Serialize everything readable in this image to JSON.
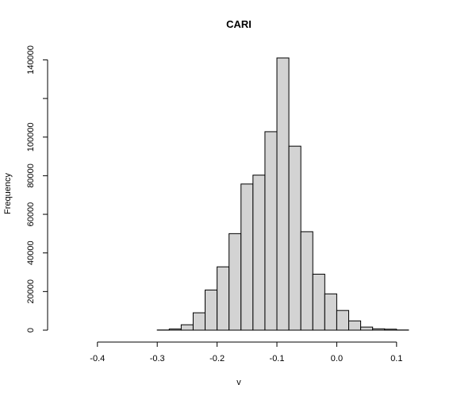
{
  "chart_data": {
    "type": "bar",
    "title": "CARI",
    "xlabel": "v",
    "ylabel": "Frequency",
    "bin_width": 0.02,
    "bins": [
      {
        "x0": -0.46,
        "x1": -0.44,
        "count": 0
      },
      {
        "x0": -0.44,
        "x1": -0.42,
        "count": 0
      },
      {
        "x0": -0.42,
        "x1": -0.4,
        "count": 0
      },
      {
        "x0": -0.4,
        "x1": -0.38,
        "count": 0
      },
      {
        "x0": -0.38,
        "x1": -0.36,
        "count": 0
      },
      {
        "x0": -0.36,
        "x1": -0.34,
        "count": 0
      },
      {
        "x0": -0.34,
        "x1": -0.32,
        "count": 0
      },
      {
        "x0": -0.32,
        "x1": -0.3,
        "count": 0
      },
      {
        "x0": -0.3,
        "x1": -0.28,
        "count": 100
      },
      {
        "x0": -0.28,
        "x1": -0.26,
        "count": 600
      },
      {
        "x0": -0.26,
        "x1": -0.24,
        "count": 2800
      },
      {
        "x0": -0.24,
        "x1": -0.22,
        "count": 9000
      },
      {
        "x0": -0.22,
        "x1": -0.2,
        "count": 20800
      },
      {
        "x0": -0.2,
        "x1": -0.18,
        "count": 32800
      },
      {
        "x0": -0.18,
        "x1": -0.16,
        "count": 50000
      },
      {
        "x0": -0.16,
        "x1": -0.14,
        "count": 75700
      },
      {
        "x0": -0.14,
        "x1": -0.12,
        "count": 80300
      },
      {
        "x0": -0.12,
        "x1": -0.1,
        "count": 102800
      },
      {
        "x0": -0.1,
        "x1": -0.08,
        "count": 141000
      },
      {
        "x0": -0.08,
        "x1": -0.06,
        "count": 95300
      },
      {
        "x0": -0.06,
        "x1": -0.04,
        "count": 51000
      },
      {
        "x0": -0.04,
        "x1": -0.02,
        "count": 29000
      },
      {
        "x0": -0.02,
        "x1": 0.0,
        "count": 18800
      },
      {
        "x0": 0.0,
        "x1": 0.02,
        "count": 10200
      },
      {
        "x0": 0.02,
        "x1": 0.04,
        "count": 4800
      },
      {
        "x0": 0.04,
        "x1": 0.06,
        "count": 1600
      },
      {
        "x0": 0.06,
        "x1": 0.08,
        "count": 700
      },
      {
        "x0": 0.08,
        "x1": 0.1,
        "count": 500
      },
      {
        "x0": 0.1,
        "x1": 0.12,
        "count": 100
      },
      {
        "x0": 0.12,
        "x1": 0.14,
        "count": 0
      }
    ],
    "xlim": [
      -0.47,
      0.14
    ],
    "ylim": [
      0,
      141000
    ],
    "x_ticks": [
      {
        "value": -0.4,
        "label": "-0.4"
      },
      {
        "value": -0.3,
        "label": "-0.3"
      },
      {
        "value": -0.2,
        "label": "-0.2"
      },
      {
        "value": -0.1,
        "label": "-0.1"
      },
      {
        "value": 0.0,
        "label": "0.0"
      },
      {
        "value": 0.1,
        "label": "0.1"
      }
    ],
    "y_ticks": [
      {
        "value": 0,
        "label": "0"
      },
      {
        "value": 20000,
        "label": "20000"
      },
      {
        "value": 40000,
        "label": "40000"
      },
      {
        "value": 60000,
        "label": "60000"
      },
      {
        "value": 80000,
        "label": "80000"
      },
      {
        "value": 100000,
        "label": "100000"
      },
      {
        "value": 120000,
        "label": ""
      },
      {
        "value": 140000,
        "label": "140000"
      }
    ],
    "grid": false,
    "legend": "none"
  }
}
